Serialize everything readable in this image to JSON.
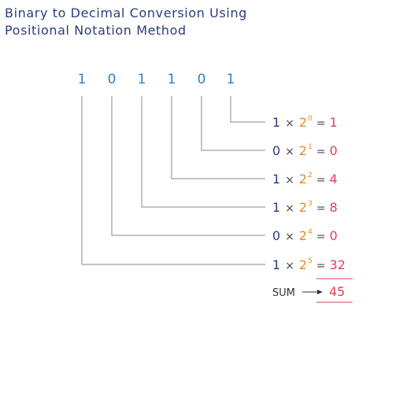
{
  "title": {
    "line1": "Binary to Decimal Conversion Using",
    "line2": "Positional Notation Method"
  },
  "binary_digits": [
    "1",
    "0",
    "1",
    "1",
    "0",
    "1"
  ],
  "rows": [
    {
      "bit": "1",
      "times": "×",
      "base": "2",
      "exponent": "0",
      "equals": "=",
      "result": "1"
    },
    {
      "bit": "0",
      "times": "×",
      "base": "2",
      "exponent": "1",
      "equals": "=",
      "result": "0"
    },
    {
      "bit": "1",
      "times": "×",
      "base": "2",
      "exponent": "2",
      "equals": "=",
      "result": "4"
    },
    {
      "bit": "1",
      "times": "×",
      "base": "2",
      "exponent": "3",
      "equals": "=",
      "result": "8"
    },
    {
      "bit": "0",
      "times": "×",
      "base": "2",
      "exponent": "4",
      "equals": "=",
      "result": "0"
    },
    {
      "bit": "1",
      "times": "×",
      "base": "2",
      "exponent": "5",
      "equals": "=",
      "result": "32"
    }
  ],
  "sum": {
    "label": "SUM",
    "value": "45"
  },
  "colors": {
    "title": "#2c3e7a",
    "digit": "#2f7fc1",
    "bit": "#2c3e7a",
    "base": "#e8892c",
    "result": "#e0405a",
    "wire": "#8a8a8a"
  }
}
